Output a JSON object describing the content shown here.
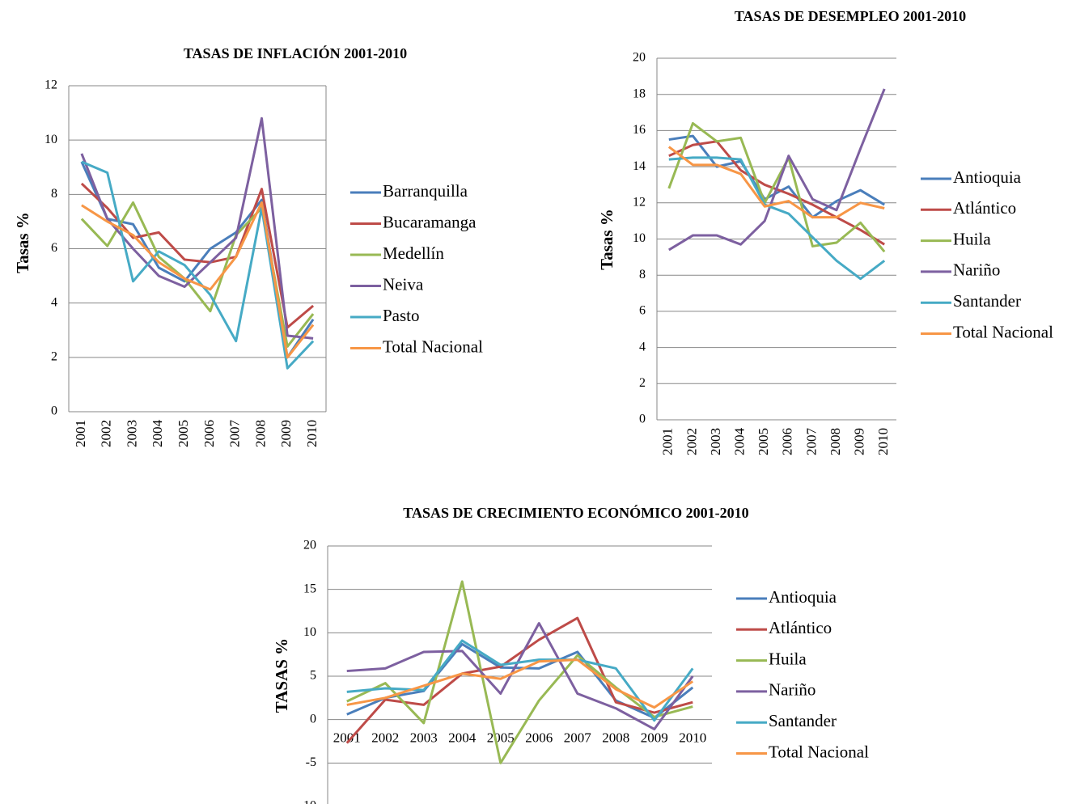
{
  "chart_data": [
    {
      "type": "line",
      "title": "TASAS DE INFLACIÓN 2001-2010",
      "ylabel": "Tasas  %",
      "categories": [
        "2001",
        "2002",
        "2003",
        "2004",
        "2005",
        "2006",
        "2007",
        "2008",
        "2009",
        "2010"
      ],
      "series": [
        {
          "name": "Barranquilla",
          "color": "#4a7ebb",
          "values": [
            9.2,
            7.1,
            6.9,
            5.3,
            4.8,
            6.0,
            6.6,
            7.8,
            2.0,
            3.4
          ]
        },
        {
          "name": "Bucaramanga",
          "color": "#be4b48",
          "values": [
            8.4,
            7.5,
            6.4,
            6.6,
            5.6,
            5.5,
            5.7,
            8.2,
            3.1,
            3.9
          ]
        },
        {
          "name": "Medellín",
          "color": "#98b954",
          "values": [
            7.1,
            6.1,
            7.7,
            5.7,
            4.9,
            3.7,
            6.5,
            7.5,
            2.4,
            3.6
          ]
        },
        {
          "name": "Neiva",
          "color": "#7d60a0",
          "values": [
            9.5,
            7.1,
            6.0,
            5.0,
            4.6,
            5.5,
            6.4,
            10.8,
            2.8,
            2.7
          ]
        },
        {
          "name": "Pasto",
          "color": "#46aac5",
          "values": [
            9.2,
            8.8,
            4.8,
            5.9,
            5.4,
            4.3,
            2.6,
            7.5,
            1.6,
            2.6
          ]
        },
        {
          "name": "Total Nacional",
          "color": "#f79646",
          "values": [
            7.6,
            7.0,
            6.5,
            5.5,
            4.9,
            4.5,
            5.7,
            7.7,
            2.0,
            3.2
          ]
        }
      ],
      "ylim": [
        0,
        12
      ],
      "yticks": [
        0,
        2,
        4,
        6,
        8,
        10,
        12
      ],
      "grid": true,
      "legend": "right"
    },
    {
      "type": "line",
      "title": "TASAS DE DESEMPLEO 2001-2010",
      "ylabel": "Tasas  %",
      "categories": [
        "2001",
        "2002",
        "2003",
        "2004",
        "2005",
        "2006",
        "2007",
        "2008",
        "2009",
        "2010"
      ],
      "series": [
        {
          "name": "Antioquia",
          "color": "#4a7ebb",
          "values": [
            15.5,
            15.7,
            14.0,
            14.3,
            12.2,
            12.9,
            11.2,
            12.1,
            12.7,
            11.9
          ]
        },
        {
          "name": "Atlántico",
          "color": "#be4b48",
          "values": [
            14.6,
            15.2,
            15.4,
            13.8,
            13.0,
            12.5,
            11.9,
            11.2,
            10.5,
            9.7
          ]
        },
        {
          "name": "Huila",
          "color": "#98b954",
          "values": [
            12.8,
            16.4,
            15.4,
            15.6,
            12.0,
            14.5,
            9.6,
            9.8,
            10.9,
            9.3
          ]
        },
        {
          "name": "Nariño",
          "color": "#7d60a0",
          "values": [
            9.4,
            10.2,
            10.2,
            9.7,
            11.0,
            14.6,
            12.2,
            11.6,
            15.0,
            18.3
          ]
        },
        {
          "name": "Santander",
          "color": "#46aac5",
          "values": [
            14.4,
            14.5,
            14.5,
            14.4,
            11.9,
            11.4,
            10.1,
            8.8,
            7.8,
            8.8
          ]
        },
        {
          "name": "Total Nacional",
          "color": "#f79646",
          "values": [
            15.1,
            14.1,
            14.1,
            13.6,
            11.8,
            12.1,
            11.2,
            11.2,
            12.0,
            11.7
          ]
        }
      ],
      "ylim": [
        0,
        20
      ],
      "yticks": [
        0,
        2,
        4,
        6,
        8,
        10,
        12,
        14,
        16,
        18,
        20
      ],
      "grid": true,
      "legend": "right"
    },
    {
      "type": "line",
      "title": "TASAS DE CRECIMIENTO ECONÓMICO 2001-2010",
      "ylabel": "TASAS %",
      "categories": [
        "2001",
        "2002",
        "2003",
        "2004",
        "2005",
        "2006",
        "2007",
        "2008",
        "2009",
        "2010"
      ],
      "series": [
        {
          "name": "Antioquia",
          "color": "#4a7ebb",
          "values": [
            0.6,
            2.5,
            3.3,
            8.7,
            6.0,
            5.9,
            7.8,
            2.2,
            0.2,
            3.7
          ]
        },
        {
          "name": "Atlántico",
          "color": "#be4b48",
          "values": [
            -2.7,
            2.3,
            1.7,
            5.3,
            6.1,
            9.2,
            11.7,
            2.0,
            0.8,
            2.0
          ]
        },
        {
          "name": "Huila",
          "color": "#98b954",
          "values": [
            2.1,
            4.2,
            -0.4,
            15.9,
            -5.0,
            2.2,
            7.4,
            3.7,
            0.3,
            1.5
          ]
        },
        {
          "name": "Nariño",
          "color": "#7d60a0",
          "values": [
            5.6,
            5.9,
            7.8,
            7.9,
            3.0,
            11.1,
            3.0,
            1.3,
            -1.1,
            5.0
          ]
        },
        {
          "name": "Santander",
          "color": "#46aac5",
          "values": [
            3.2,
            3.6,
            3.4,
            9.1,
            6.3,
            6.9,
            6.9,
            5.9,
            -0.1,
            5.9
          ]
        },
        {
          "name": "Total Nacional",
          "color": "#f79646",
          "values": [
            1.7,
            2.5,
            3.9,
            5.3,
            4.7,
            6.7,
            6.9,
            3.5,
            1.4,
            4.4
          ]
        }
      ],
      "ylim": [
        -10,
        20
      ],
      "yticks": [
        -10,
        -5,
        0,
        5,
        10,
        15,
        20
      ],
      "grid": true,
      "legend": "right"
    }
  ]
}
